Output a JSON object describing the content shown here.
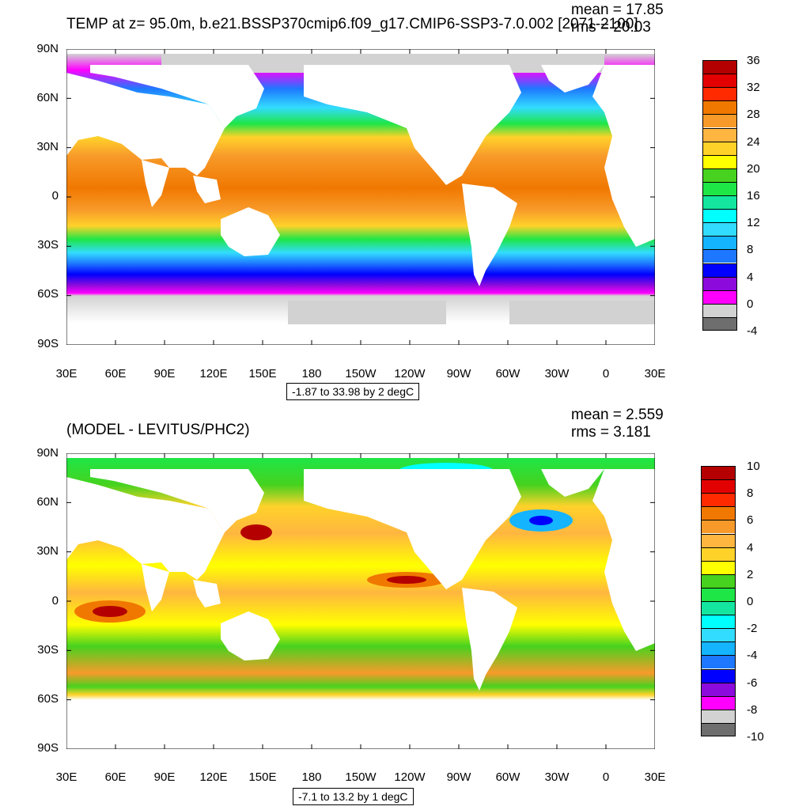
{
  "top": {
    "title": "TEMP at z=  95.0m, b.e21.BSSP370cmip6.f09_g17.CMIP6-SSP3-7.0.002 [2071-2100]",
    "mean_text": "mean = 17.85",
    "rms_text": "rms = 20.03",
    "range_text": "-1.87 to 33.98 by 2 degC",
    "lat_labels": [
      "90N",
      "60N",
      "30N",
      "0",
      "30S",
      "60S",
      "90S"
    ],
    "lon_labels": [
      "30E",
      "60E",
      "90E",
      "120E",
      "150E",
      "180",
      "150W",
      "120W",
      "90W",
      "60W",
      "30W",
      "0",
      "30E"
    ],
    "colorbar": {
      "labels": [
        "36",
        "32",
        "28",
        "24",
        "20",
        "16",
        "12",
        "8",
        "4",
        "0",
        "-4"
      ],
      "colors": [
        "#b40000",
        "#e30000",
        "#ff2a00",
        "#f07800",
        "#f89a2a",
        "#ffb640",
        "#ffd22a",
        "#ffff00",
        "#46d21e",
        "#1ee646",
        "#14e6a0",
        "#00ffff",
        "#32dcff",
        "#14b4ff",
        "#1e78ff",
        "#0000ff",
        "#8c0adc",
        "#ff00ff",
        "#d2d2d2",
        "#6e6e6e"
      ]
    }
  },
  "bottom": {
    "title": "(MODEL - LEVITUS/PHC2)",
    "mean_text": "mean = 2.559",
    "rms_text": "rms = 3.181",
    "range_text": "-7.1 to 13.2 by 1 degC",
    "lat_labels": [
      "90N",
      "60N",
      "30N",
      "0",
      "30S",
      "60S",
      "90S"
    ],
    "lon_labels": [
      "30E",
      "60E",
      "90E",
      "120E",
      "150E",
      "180",
      "150W",
      "120W",
      "90W",
      "60W",
      "30W",
      "0",
      "30E"
    ],
    "colorbar": {
      "labels": [
        "10",
        "8",
        "6",
        "4",
        "2",
        "0",
        "-2",
        "-4",
        "-6",
        "-8",
        "-10"
      ],
      "colors": [
        "#b40000",
        "#e30000",
        "#ff2a00",
        "#f07800",
        "#f89a2a",
        "#ffb640",
        "#ffd22a",
        "#ffff00",
        "#46d21e",
        "#1ee646",
        "#14e6a0",
        "#00ffff",
        "#32dcff",
        "#14b4ff",
        "#1e78ff",
        "#0000ff",
        "#8c0adc",
        "#ff00ff",
        "#d2d2d2",
        "#6e6e6e"
      ]
    }
  }
}
